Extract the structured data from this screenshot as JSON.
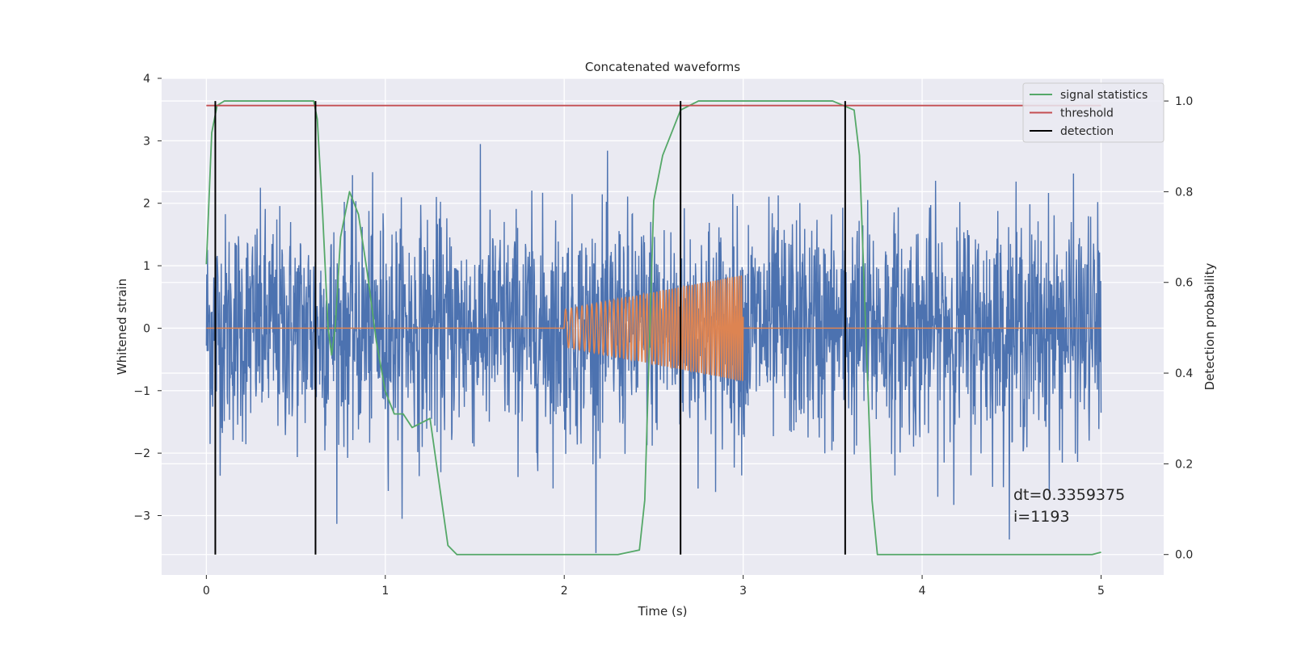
{
  "chart_data": {
    "type": "line",
    "title": "Concatenated waveforms",
    "xlabel": "Time (s)",
    "ylabel": "Whitened strain",
    "y2label": "Detection probability",
    "xlim": [
      -0.25,
      5.35
    ],
    "ylim": [
      -3.95,
      4.0
    ],
    "y2lim": [
      -0.045,
      1.05
    ],
    "x_ticks": [
      0,
      1,
      2,
      3,
      4,
      5
    ],
    "y_ticks": [
      -3,
      -2,
      -1,
      0,
      1,
      2,
      3,
      4
    ],
    "y2_ticks": [
      0.0,
      0.2,
      0.4,
      0.6,
      0.8,
      1.0
    ],
    "x_tick_labels": [
      "0",
      "1",
      "2",
      "3",
      "4",
      "5"
    ],
    "y_tick_labels": [
      "−3",
      "−2",
      "−1",
      "0",
      "1",
      "2",
      "3",
      "4"
    ],
    "y2_tick_labels": [
      "0.0",
      "0.2",
      "0.4",
      "0.6",
      "0.8",
      "1.0"
    ],
    "grid": true,
    "legend_position": "top-right",
    "colors": {
      "strain": "#4c72b0",
      "waveform": "#dd8452",
      "signal_statistics": "#55a868",
      "threshold": "#c44e52",
      "detection": "#000000",
      "background": "#eaeaf2"
    },
    "series": [
      {
        "name": "",
        "axis": "left",
        "kind": "noise",
        "x_range": [
          0,
          5
        ],
        "approx_std": 0.9,
        "approx_peak": 3.6
      },
      {
        "name": "",
        "axis": "left",
        "kind": "chirp",
        "x_range": [
          2,
          3
        ],
        "start_amplitude": 0.3,
        "end_amplitude": 0.85,
        "start_frequency_hz": 30,
        "end_frequency_hz": 80
      },
      {
        "name": "signal statistics",
        "axis": "right",
        "x": [
          0.0,
          0.03,
          0.06,
          0.1,
          0.15,
          0.3,
          0.5,
          0.6,
          0.62,
          0.65,
          0.68,
          0.7,
          0.72,
          0.75,
          0.8,
          0.85,
          0.9,
          0.95,
          1.0,
          1.05,
          1.1,
          1.15,
          1.2,
          1.25,
          1.3,
          1.35,
          1.4,
          1.6,
          2.0,
          2.3,
          2.42,
          2.45,
          2.5,
          2.55,
          2.65,
          2.75,
          3.0,
          3.5,
          3.62,
          3.65,
          3.68,
          3.72,
          3.75,
          4.0,
          4.5,
          4.95,
          5.0
        ],
        "y": [
          0.64,
          0.93,
          0.99,
          1.0,
          1.0,
          1.0,
          1.0,
          1.0,
          0.96,
          0.75,
          0.5,
          0.44,
          0.5,
          0.7,
          0.8,
          0.75,
          0.62,
          0.47,
          0.36,
          0.31,
          0.31,
          0.28,
          0.29,
          0.3,
          0.16,
          0.02,
          0.0,
          0.0,
          0.0,
          0.0,
          0.01,
          0.12,
          0.78,
          0.88,
          0.98,
          1.0,
          1.0,
          1.0,
          0.98,
          0.88,
          0.55,
          0.12,
          0.0,
          0.0,
          0.0,
          0.0,
          0.005
        ]
      },
      {
        "name": "threshold",
        "axis": "right",
        "x": [
          0,
          5
        ],
        "y": [
          0.99,
          0.99
        ]
      },
      {
        "name": "detection",
        "axis": "right",
        "kind": "vlines",
        "x": [
          0.05,
          0.61,
          2.65,
          3.57
        ],
        "y_range": [
          0.0,
          1.0
        ]
      }
    ],
    "annotations": [
      {
        "text": "dt=0.3359375",
        "x": 4.51,
        "y": -2.75
      },
      {
        "text": " i=1193",
        "x": 4.51,
        "y": -3.1
      }
    ]
  }
}
